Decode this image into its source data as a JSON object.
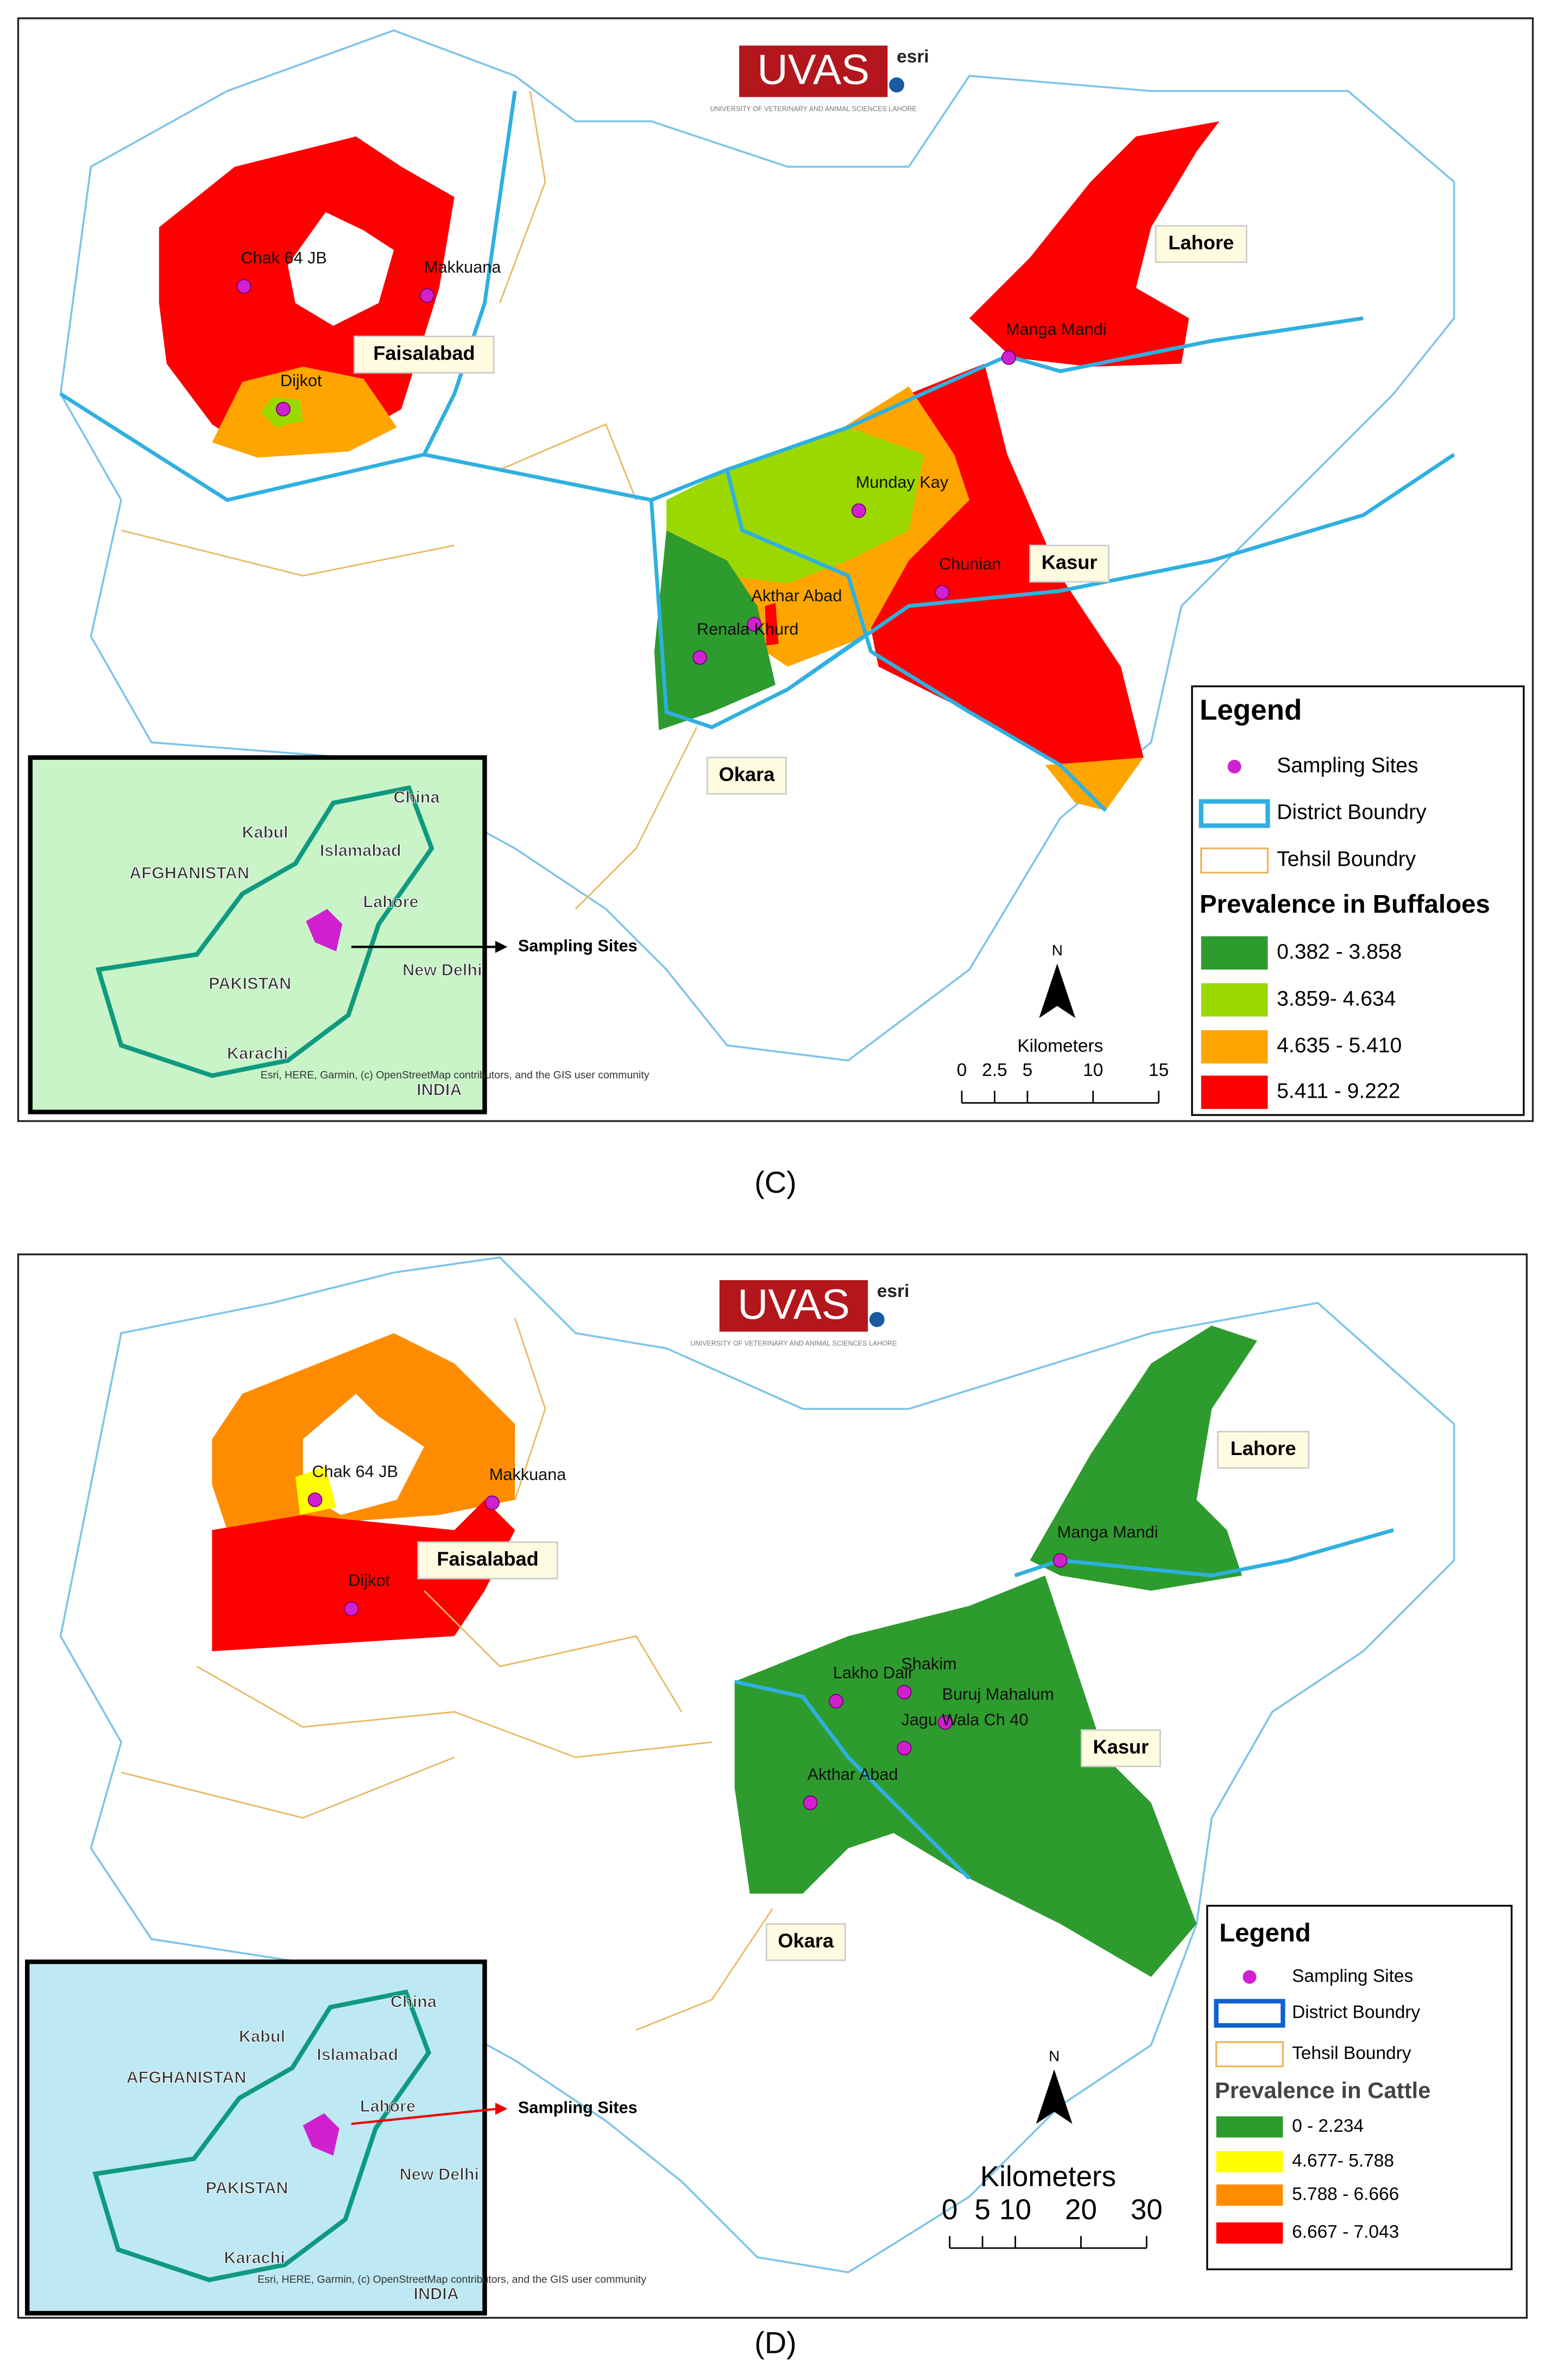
{
  "panels": [
    {
      "caption": "(C)",
      "logo": {
        "title": "UVAS",
        "subtitle": "UNIVERSITY OF VETERINARY AND ANIMAL SCIENCES LAHORE",
        "partner": "esri"
      },
      "districts": [
        "Faisalabad",
        "Lahore",
        "Kasur",
        "Okara"
      ],
      "sites": [
        "Chak 64 JB",
        "Makkuana",
        "Dijkot",
        "Manga Mandi",
        "Munday Kay",
        "Chunian",
        "Akthar Abad",
        "Renala Khurd"
      ],
      "inset": {
        "labels": [
          "China",
          "Kabul",
          "Islamabad",
          "AFGHANISTAN",
          "Lahore",
          "PAKISTAN",
          "New Delhi",
          "Karachi",
          "INDIA"
        ],
        "credit": "Esri, HERE, Garmin, (c) OpenStreetMap contributors, and the GIS user community",
        "arrow_label": "Sampling Sites"
      },
      "legend": {
        "title": "Legend",
        "items": [
          "Sampling Sites",
          "District Boundry",
          "Tehsil Boundry"
        ],
        "prevalence_title": "Prevalence in Buffaloes",
        "classes": [
          {
            "label": "0.382 - 3.858",
            "color": "#2e9b2e"
          },
          {
            "label": "3.859- 4.634",
            "color": "#9ad800"
          },
          {
            "label": "4.635 - 5.410",
            "color": "#ffa500"
          },
          {
            "label": "5.411 - 9.222",
            "color": "#ff0000"
          }
        ]
      },
      "scale": {
        "north": "N",
        "unit": "Kilometers",
        "ticks": [
          0,
          2.5,
          5,
          10,
          15
        ]
      }
    },
    {
      "caption": "(D)",
      "logo": {
        "title": "UVAS",
        "subtitle": "UNIVERSITY OF VETERINARY AND ANIMAL SCIENCES LAHORE",
        "partner": "esri"
      },
      "districts": [
        "Faisalabad",
        "Lahore",
        "Kasur",
        "Okara"
      ],
      "sites": [
        "Chak 64 JB",
        "Makkuana",
        "Dijkot",
        "Manga Mandi",
        "Lakho Dair",
        "Shakim",
        "Buruj Mahalum",
        "Jagu Wala Ch 40",
        "Akthar Abad"
      ],
      "inset": {
        "labels": [
          "China",
          "Kabul",
          "Islamabad",
          "AFGHANISTAN",
          "Lahore",
          "PAKISTAN",
          "New Delhi",
          "Karachi",
          "INDIA"
        ],
        "credit": "Esri, HERE, Garmin, (c) OpenStreetMap contributors, and the GIS user community",
        "arrow_label": "Sampling Sites"
      },
      "legend": {
        "title": "Legend",
        "items": [
          "Sampling Sites",
          "District Boundry",
          "Tehsil Boundry"
        ],
        "prevalence_title": "Prevalence in Cattle",
        "classes": [
          {
            "label": "0 - 2.234",
            "color": "#2e9b2e"
          },
          {
            "label": "4.677- 5.788",
            "color": "#ffff00"
          },
          {
            "label": "5.788 - 6.666",
            "color": "#ff8c00"
          },
          {
            "label": "6.667 - 7.043",
            "color": "#ff0000"
          }
        ]
      },
      "scale": {
        "north": "N",
        "unit": "Kilometers",
        "ticks": [
          0,
          5,
          10,
          20,
          30
        ]
      }
    }
  ]
}
